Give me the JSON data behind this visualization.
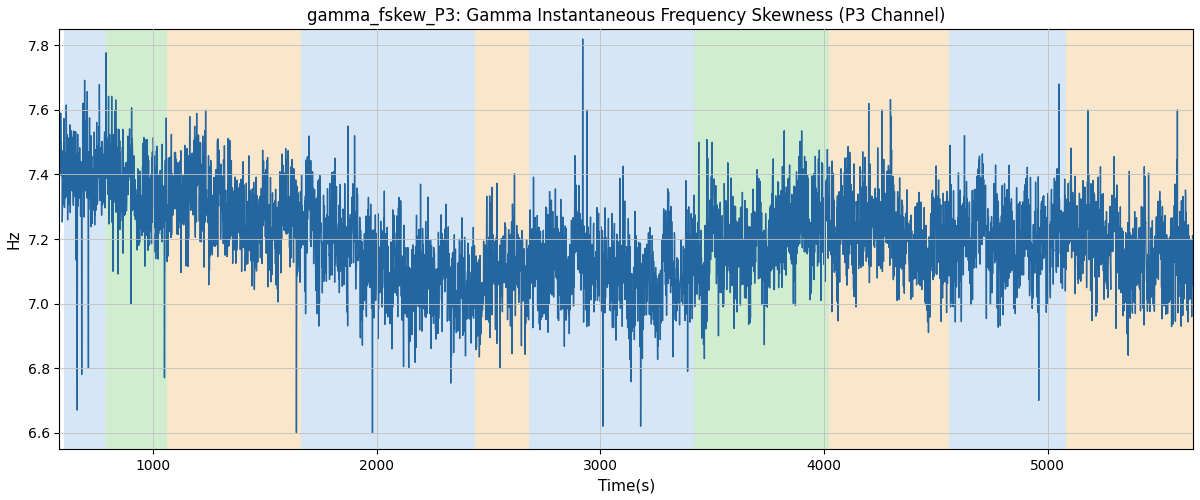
{
  "title": "gamma_fskew_P3: Gamma Instantaneous Frequency Skewness (P3 Channel)",
  "xlabel": "Time(s)",
  "ylabel": "Hz",
  "ylim": [
    6.55,
    7.85
  ],
  "xlim": [
    580,
    5650
  ],
  "xticks": [
    1000,
    2000,
    3000,
    4000,
    5000
  ],
  "yticks": [
    6.6,
    6.8,
    7.0,
    7.2,
    7.4,
    7.6,
    7.8
  ],
  "line_color": "#2366a0",
  "line_width": 1.0,
  "background_color": "#ffffff",
  "grid_color": "#c0c0c0",
  "bands": [
    {
      "xmin": 600,
      "xmax": 790,
      "color": "#a8c8e8",
      "alpha": 0.45
    },
    {
      "xmin": 790,
      "xmax": 1060,
      "color": "#98d898",
      "alpha": 0.45
    },
    {
      "xmin": 1060,
      "xmax": 1660,
      "color": "#f5c98a",
      "alpha": 0.45
    },
    {
      "xmin": 1660,
      "xmax": 2440,
      "color": "#a8c8e8",
      "alpha": 0.45
    },
    {
      "xmin": 2440,
      "xmax": 2680,
      "color": "#f5c98a",
      "alpha": 0.45
    },
    {
      "xmin": 2680,
      "xmax": 3420,
      "color": "#a8c8e8",
      "alpha": 0.45
    },
    {
      "xmin": 3420,
      "xmax": 3760,
      "color": "#98d898",
      "alpha": 0.45
    },
    {
      "xmin": 3760,
      "xmax": 4020,
      "color": "#98d898",
      "alpha": 0.45
    },
    {
      "xmin": 4020,
      "xmax": 4560,
      "color": "#f5c98a",
      "alpha": 0.45
    },
    {
      "xmin": 4560,
      "xmax": 5080,
      "color": "#a8c8e8",
      "alpha": 0.45
    },
    {
      "xmin": 5080,
      "xmax": 5650,
      "color": "#f5c98a",
      "alpha": 0.45
    }
  ],
  "seed": 42,
  "n_points": 5070,
  "t_start": 580,
  "t_end": 5650
}
